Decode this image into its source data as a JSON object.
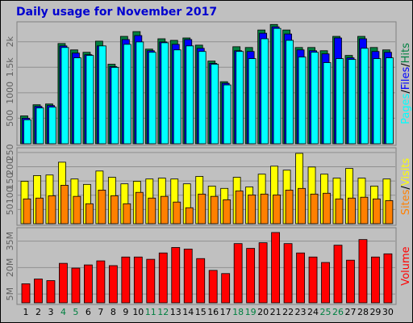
{
  "title": "Daily usage for November 2017",
  "chart_data": [
    {
      "type": "bar",
      "ylim": [
        0,
        2360
      ],
      "yticks": [
        500,
        1000,
        {
          "value": 1500,
          "label": "1.5k"
        },
        {
          "value": 2000,
          "label": "2k"
        }
      ],
      "grid": true,
      "legend_separator": "/",
      "series": [
        {
          "name": "Hits",
          "color": "#008040",
          "values": [
            546,
            765,
            780,
            1966,
            1841,
            1794,
            2012,
            1560,
            2106,
            2200,
            1856,
            2059,
            2028,
            2075,
            1934,
            1622,
            1217,
            1903,
            1888,
            2231,
            2340,
            2231,
            1888,
            1888,
            1825,
            2106,
            1732,
            2106,
            1888,
            1841
          ]
        },
        {
          "name": "Files",
          "color": "#0000ff",
          "values": [
            500,
            733,
            750,
            1919,
            1778,
            1747,
            1919,
            1513,
            2044,
            2122,
            1825,
            1997,
            1950,
            2044,
            1872,
            1576,
            1186,
            1825,
            1810,
            2168,
            2293,
            2153,
            1841,
            1825,
            1763,
            2075,
            1685,
            2059,
            1810,
            1794
          ]
        },
        {
          "name": "Pages",
          "color": "#00ffff",
          "values": [
            470,
            702,
            718,
            1888,
            1685,
            1732,
            1919,
            1498,
            1950,
            1997,
            1794,
            1981,
            1841,
            1919,
            1810,
            1560,
            1154,
            1810,
            1669,
            2059,
            2262,
            2028,
            1700,
            1794,
            1591,
            1669,
            1654,
            1872,
            1669,
            1685
          ]
        }
      ]
    },
    {
      "type": "bar",
      "ylim": [
        0,
        261
      ],
      "yticks": [
        50,
        100,
        150,
        200,
        250
      ],
      "grid": true,
      "legend_separator": "/",
      "series": [
        {
          "name": "Visits",
          "color": "#ffff00",
          "values": [
            149,
            169,
            171,
            216,
            157,
            138,
            185,
            163,
            140,
            149,
            157,
            160,
            157,
            140,
            166,
            132,
            124,
            163,
            129,
            174,
            202,
            188,
            247,
            199,
            174,
            160,
            194,
            160,
            132,
            157
          ]
        },
        {
          "name": "Sites",
          "color": "#ff8000",
          "values": [
            87,
            90,
            98,
            135,
            96,
            70,
            118,
            98,
            70,
            110,
            90,
            96,
            76,
            56,
            104,
            96,
            84,
            115,
            101,
            104,
            101,
            118,
            124,
            104,
            107,
            87,
            90,
            93,
            87,
            81
          ]
        }
      ]
    },
    {
      "type": "bar",
      "ylim": [
        0,
        41.7
      ],
      "yticks": [
        {
          "value": 5,
          "label": "5M"
        },
        {
          "value": 20,
          "label": "20M"
        },
        {
          "value": 35,
          "label": "35M"
        }
      ],
      "grid": true,
      "categories": [
        "1",
        "2",
        "3",
        "4",
        "5",
        "6",
        "7",
        "8",
        "9",
        "10",
        "11",
        "12",
        "13",
        "14",
        "15",
        "16",
        "17",
        "18",
        "19",
        "20",
        "21",
        "22",
        "23",
        "24",
        "25",
        "26",
        "27",
        "28",
        "29",
        "30"
      ],
      "label_colors": [
        "#000",
        "#000",
        "#000",
        "#008040",
        "#008040",
        "#000",
        "#000",
        "#000",
        "#000",
        "#000",
        "#008040",
        "#008040",
        "#000",
        "#000",
        "#000",
        "#000",
        "#000",
        "#008040",
        "#008040",
        "#000",
        "#000",
        "#000",
        "#000",
        "#000",
        "#008040",
        "#008040",
        "#000",
        "#000",
        "#000",
        "#000"
      ],
      "series": [
        {
          "name": "Volume",
          "color": "#ff0000",
          "values": [
            10.8,
            13.5,
            12.6,
            22.4,
            19.7,
            21.5,
            23.8,
            21.1,
            26.0,
            26.0,
            24.7,
            28.3,
            31.4,
            30.5,
            25.1,
            18.4,
            16.6,
            33.6,
            30.9,
            34.1,
            39.9,
            33.6,
            28.3,
            26.0,
            22.9,
            32.7,
            24.2,
            35.9,
            26.0,
            27.8
          ]
        }
      ]
    }
  ]
}
